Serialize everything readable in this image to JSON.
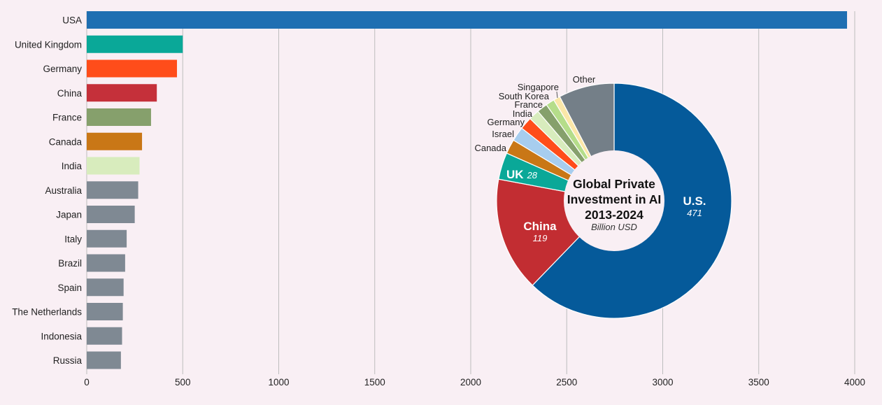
{
  "chart_data": [
    {
      "type": "bar",
      "orientation": "horizontal",
      "categories": [
        "USA",
        "United Kingdom",
        "Germany",
        "China",
        "France",
        "Canada",
        "India",
        "Australia",
        "Japan",
        "Italy",
        "Brazil",
        "Spain",
        "The Netherlands",
        "Indonesia",
        "Russia"
      ],
      "values": [
        3960,
        500,
        470,
        365,
        335,
        288,
        275,
        268,
        250,
        208,
        200,
        192,
        188,
        184,
        178
      ],
      "colors": [
        "#1f6fb2",
        "#0aa898",
        "#ff4d1a",
        "#c5303a",
        "#86a06c",
        "#c97716",
        "#d8ecbd",
        "#7f8993",
        "#7f8993",
        "#7f8993",
        "#7f8993",
        "#7f8993",
        "#7f8993",
        "#7f8993",
        "#7f8993"
      ],
      "xlim": [
        0,
        4000
      ],
      "xticks": [
        "0",
        "500",
        "1000",
        "1500",
        "2000",
        "2500",
        "3000",
        "3500",
        "4000"
      ],
      "grid": "vertical"
    },
    {
      "type": "pie",
      "style": "donut",
      "title": "Global Private Investment in AI 2013-2024",
      "title_lines": [
        "Global Private",
        "Investment in AI",
        "2013-2024"
      ],
      "subtitle": "Billion USD",
      "slices": [
        {
          "label": "U.S.",
          "value": 471,
          "value_label": "471",
          "color": "#055a9a"
        },
        {
          "label": "China",
          "value": 119,
          "value_label": "119",
          "color": "#c22d32"
        },
        {
          "label": "UK",
          "value": 28,
          "value_label": "28",
          "color": "#0aa898"
        },
        {
          "label": "Canada",
          "value": 15,
          "color": "#c97716"
        },
        {
          "label": "Israel",
          "value": 15,
          "color": "#a7cdee"
        },
        {
          "label": "Germany",
          "value": 13,
          "color": "#ff4d1a"
        },
        {
          "label": "India",
          "value": 11,
          "color": "#d8ecbd"
        },
        {
          "label": "France",
          "value": 11,
          "color": "#86a06c"
        },
        {
          "label": "South Korea",
          "value": 9,
          "color": "#b5dd8a"
        },
        {
          "label": "Singapore",
          "value": 7,
          "color": "#fbe7a8"
        },
        {
          "label": "Other",
          "value": 58,
          "color": "#747f88"
        }
      ]
    }
  ]
}
